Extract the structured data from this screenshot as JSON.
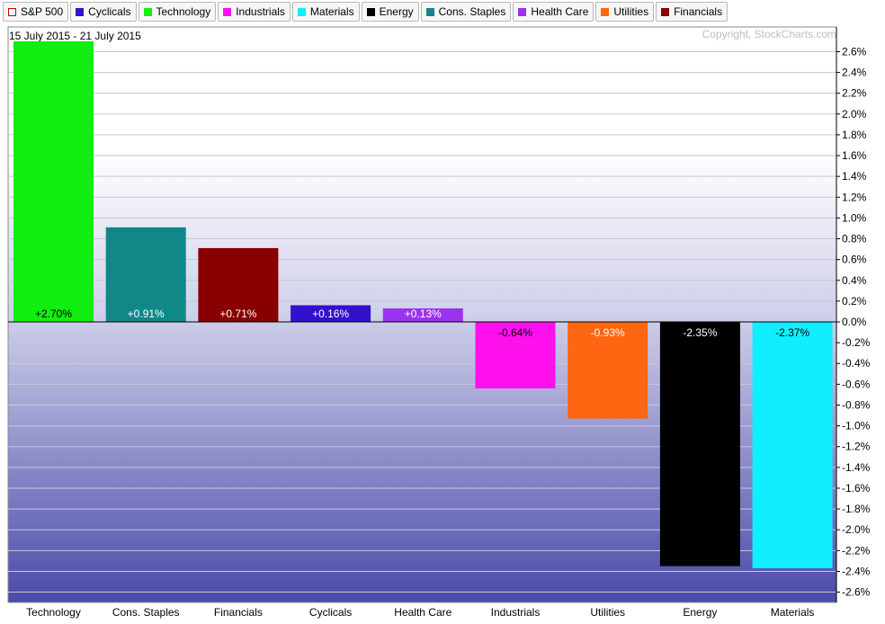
{
  "legend": [
    {
      "label": "S&P 500",
      "color": "#ffffff",
      "border": "#cc0000"
    },
    {
      "label": "Cyclicals",
      "color": "#3311cc"
    },
    {
      "label": "Technology",
      "color": "#11ee11"
    },
    {
      "label": "Industrials",
      "color": "#ff11ee"
    },
    {
      "label": "Materials",
      "color": "#11eeff"
    },
    {
      "label": "Energy",
      "color": "#000000"
    },
    {
      "label": "Cons. Staples",
      "color": "#118888"
    },
    {
      "label": "Health Care",
      "color": "#9933ee"
    },
    {
      "label": "Utilities",
      "color": "#ff6611"
    },
    {
      "label": "Financials",
      "color": "#880000"
    }
  ],
  "chart_data": {
    "type": "bar",
    "date_range": "15 July 2015 - 21 July 2015",
    "copyright": "Copyright, StockCharts.com",
    "categories": [
      "Technology",
      "Cons. Staples",
      "Financials",
      "Cyclicals",
      "Health Care",
      "Industrials",
      "Utilities",
      "Energy",
      "Materials"
    ],
    "values": [
      2.7,
      0.91,
      0.71,
      0.16,
      0.13,
      -0.64,
      -0.93,
      -2.35,
      -2.37
    ],
    "value_labels": [
      "+2.70%",
      "+0.91%",
      "+0.71%",
      "+0.16%",
      "+0.13%",
      "-0.64%",
      "-0.93%",
      "-2.35%",
      "-2.37%"
    ],
    "colors": [
      "#11ee11",
      "#118888",
      "#880000",
      "#3311cc",
      "#9933ee",
      "#ff11ee",
      "#ff6611",
      "#000000",
      "#11eeff"
    ],
    "label_colors": [
      "#000000",
      "#ffffff",
      "#ffffff",
      "#ffffff",
      "#ffffff",
      "#000000",
      "#ffffff",
      "#ffffff",
      "#000000"
    ],
    "y_ticks": [
      "2.6%",
      "2.4%",
      "2.2%",
      "2.0%",
      "1.8%",
      "1.6%",
      "1.4%",
      "1.2%",
      "1.0%",
      "0.8%",
      "0.6%",
      "0.4%",
      "0.2%",
      "0.0%",
      "-0.2%",
      "-0.4%",
      "-0.6%",
      "-0.8%",
      "-1.0%",
      "-1.2%",
      "-1.4%",
      "-1.6%",
      "-1.8%",
      "-2.0%",
      "-2.2%",
      "-2.4%",
      "-2.6%"
    ],
    "ylim": [
      -2.72,
      2.72
    ],
    "y_axis_position": "right",
    "grid": true
  }
}
